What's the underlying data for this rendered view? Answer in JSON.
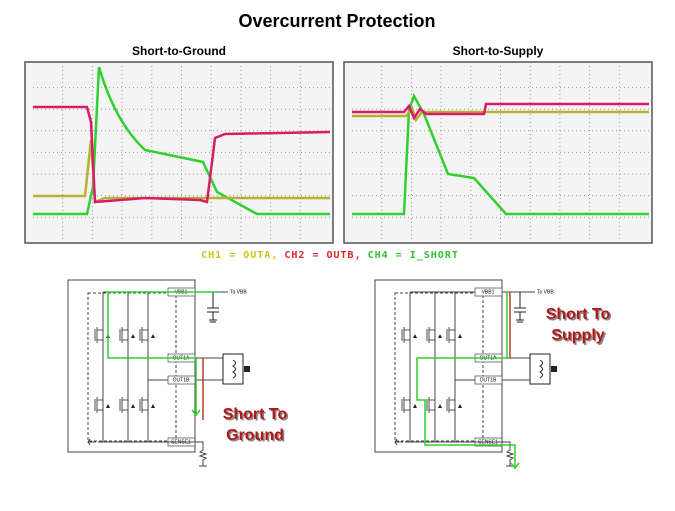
{
  "title": "Overcurrent Protection",
  "scopes": [
    {
      "title": "Short-to-Ground"
    },
    {
      "title": "Short-to-Supply"
    }
  ],
  "legend": [
    {
      "text": "CH1 = OUTA,",
      "color": "#cfc21a"
    },
    {
      "text": "CH2 = OUTB,",
      "color": "#d8262a"
    },
    {
      "text": "CH4 = I_SHORT",
      "color": "#33c233"
    }
  ],
  "circuits": [
    {
      "pins": [
        "VBB1",
        "OUT1A",
        "OUT1B",
        "SENSE1"
      ],
      "supply": "To VBB",
      "callout": [
        "Short To",
        "Ground"
      ]
    },
    {
      "pins": [
        "VBB1",
        "OUT1A",
        "OUT1B",
        "SENSE1"
      ],
      "supply": "To VBB",
      "callout": [
        "Short To",
        "Supply"
      ]
    }
  ]
}
